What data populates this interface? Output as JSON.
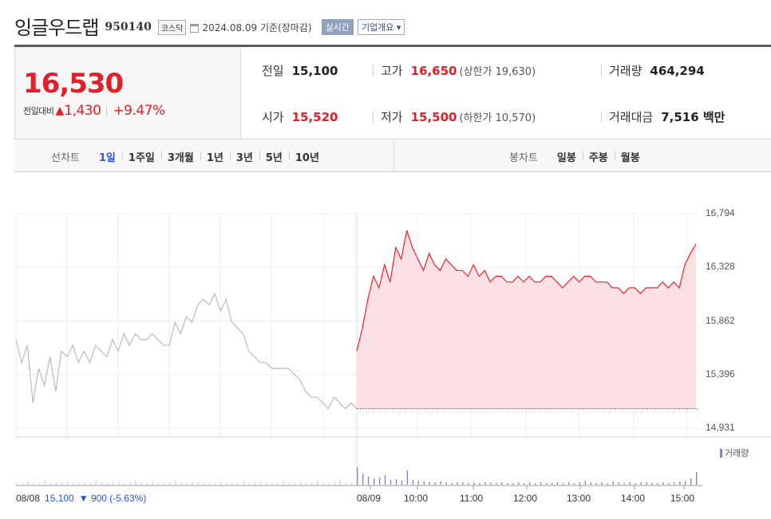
{
  "header": {
    "stock_name": "잉글우드랩",
    "stock_code": "950140",
    "market": "코스닥",
    "date_text": "2024.08.09  기준(장마감)",
    "realtime_label": "실시간",
    "overview_label": "기업개요 ▾"
  },
  "quote": {
    "current_price": "16,530",
    "change_label": "전일대비",
    "change_arrow": "▲",
    "change_amount": "1,430",
    "change_rate": "+9.47%",
    "prev_close_label": "전일",
    "prev_close": "15,100",
    "open_label": "시가",
    "open": "15,520",
    "high_label": "고가",
    "high": "16,650",
    "upper_limit": "(상한가 19,630)",
    "low_label": "저가",
    "low": "15,500",
    "lower_limit": "(하한가 10,570)",
    "volume_label": "거래량",
    "volume": "464,294",
    "trade_value_label": "거래대금",
    "trade_value": "7,516 백만"
  },
  "tabs": {
    "line_chart_label": "선차트",
    "line_chart": [
      "1일",
      "1주일",
      "3개월",
      "1년",
      "3년",
      "5년",
      "10년"
    ],
    "active_line_chart": "1일",
    "candle_chart_label": "봉차트",
    "candle_chart": [
      "일봉",
      "주봉",
      "월봉"
    ]
  },
  "chart_data": {
    "type": "line",
    "yticks": [
      16794,
      16328,
      15862,
      15396,
      14931
    ],
    "ytick_labels": [
      "16,794",
      "16,328",
      "15,862",
      "15,396",
      "14,931"
    ],
    "ylim": [
      14931,
      16794
    ],
    "x_labels": [
      "08/08",
      "08/09",
      "10:00",
      "11:00",
      "12:00",
      "13:00",
      "14:00",
      "15:00"
    ],
    "prev_day": {
      "date": "08/08",
      "close": "15,100",
      "change": "▼ 900 (-5.63%)",
      "color": "#bbbbbb",
      "values": [
        15700,
        15500,
        15650,
        15150,
        15450,
        15300,
        15550,
        15250,
        15600,
        15550,
        15650,
        15500,
        15600,
        15500,
        15650,
        15600,
        15550,
        15700,
        15600,
        15750,
        15650,
        15750,
        15700,
        15700,
        15750,
        15700,
        15650,
        15650,
        15850,
        15750,
        15900,
        15850,
        16000,
        16050,
        16000,
        16100,
        15950,
        16050,
        15850,
        15800,
        15750,
        15600,
        15550,
        15500,
        15500,
        15450,
        15450,
        15450,
        15450,
        15400,
        15350,
        15250,
        15200,
        15200,
        15150,
        15100,
        15200,
        15150,
        15100,
        15150,
        15100
      ]
    },
    "today": {
      "date": "08/09",
      "color": "#e8232d",
      "fill": "#fbe1e3",
      "base": 15100,
      "values": [
        15600,
        15800,
        16050,
        16250,
        16150,
        16350,
        16200,
        16500,
        16400,
        16650,
        16500,
        16400,
        16300,
        16450,
        16350,
        16300,
        16400,
        16350,
        16300,
        16300,
        16250,
        16350,
        16250,
        16300,
        16200,
        16250,
        16250,
        16200,
        16200,
        16250,
        16200,
        16250,
        16200,
        16200,
        16250,
        16250,
        16200,
        16150,
        16200,
        16250,
        16200,
        16250,
        16250,
        16200,
        16200,
        16200,
        16150,
        16150,
        16100,
        16150,
        16150,
        16100,
        16150,
        16150,
        16150,
        16200,
        16150,
        16200,
        16150,
        16350,
        16450,
        16530
      ]
    },
    "volume_label": "거래량",
    "prev_volume": [
      3,
      2,
      4,
      2,
      3,
      5,
      2,
      3,
      2,
      4,
      3,
      2,
      3,
      2,
      5,
      3,
      2,
      3,
      4,
      2,
      3,
      5,
      3,
      2,
      4,
      3,
      2,
      3,
      6,
      3,
      2,
      4,
      3,
      2,
      3,
      2,
      4,
      3,
      2,
      3,
      5,
      2,
      3,
      4,
      3,
      2,
      3,
      5,
      2,
      3,
      4,
      2,
      3,
      5,
      3,
      2,
      4,
      6,
      3,
      2,
      5
    ],
    "today_volume": [
      22,
      14,
      10,
      8,
      9,
      12,
      6,
      7,
      5,
      18,
      6,
      5,
      4,
      3,
      3,
      4,
      3,
      2,
      3,
      3,
      2,
      3,
      2,
      3,
      3,
      2,
      3,
      2,
      2,
      3,
      2,
      3,
      2,
      3,
      2,
      2,
      3,
      2,
      3,
      2,
      3,
      5,
      3,
      2,
      3,
      2,
      4,
      3,
      2,
      3,
      2,
      3,
      3,
      2,
      2,
      3,
      2,
      3,
      4,
      5,
      8,
      16
    ]
  }
}
